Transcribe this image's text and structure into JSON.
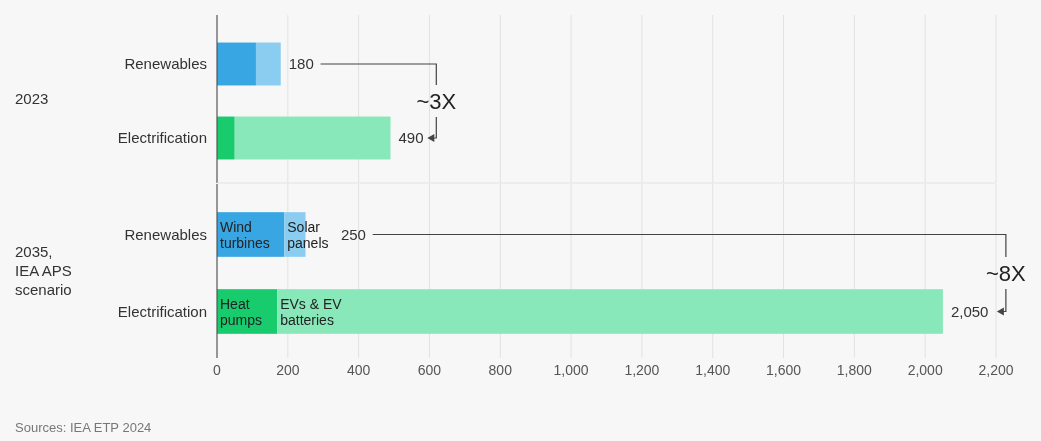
{
  "chart_data": [
    {
      "type": "bar",
      "orientation": "horizontal",
      "stacked": true,
      "ylabel": "2023",
      "categories": [
        "Renewables",
        "Electrification"
      ],
      "series": [
        {
          "color": "#38a6e3",
          "values": [
            110,
            null
          ]
        },
        {
          "color": "#8bcdf0",
          "values": [
            70,
            null
          ]
        },
        {
          "color": "#18cc6e",
          "values": [
            null,
            50
          ]
        },
        {
          "color": "#88e8b9",
          "values": [
            null,
            440
          ]
        }
      ],
      "totals": [
        "180",
        "490"
      ],
      "annotations": [
        "~3X"
      ],
      "xlim": [
        0,
        2200
      ],
      "xticks": [
        0,
        200,
        400,
        600,
        800,
        1000,
        1200,
        1400,
        1600,
        1800,
        2000,
        2200
      ],
      "grid": "x",
      "tick_labels": "y"
    },
    {
      "type": "bar",
      "orientation": "horizontal",
      "stacked": true,
      "ylabel": "2035, IEA APS scenario",
      "categories": [
        "Renewables",
        "Electrification"
      ],
      "series": [
        {
          "name": "Wind turbines",
          "color": "#38a6e3",
          "values": [
            190,
            null
          ]
        },
        {
          "name": "Solar panels",
          "color": "#8bcdf0",
          "values": [
            60,
            null
          ]
        },
        {
          "name": "Heat pumps",
          "color": "#18cc6e",
          "values": [
            null,
            170
          ]
        },
        {
          "name": "EVs & EV batteries",
          "color": "#88e8b9",
          "values": [
            null,
            1880
          ]
        }
      ],
      "totals": [
        "250",
        "2,050"
      ],
      "annotations": [
        "~8X",
        "Sources: IEA ETP 2024"
      ],
      "xlim": [
        0,
        2200
      ],
      "xticks": [
        0,
        200,
        400,
        600,
        800,
        {
          "value": 1000,
          "label": "1,000"
        },
        {
          "value": 1200,
          "label": "1,200"
        },
        {
          "value": 1400,
          "label": "1,400"
        },
        {
          "value": 1600,
          "label": "1,600"
        },
        {
          "value": 1800,
          "label": "1,800"
        },
        {
          "value": 2000,
          "label": "2,000"
        },
        {
          "value": 2200,
          "label": "2,200"
        }
      ],
      "grid": "x"
    }
  ]
}
